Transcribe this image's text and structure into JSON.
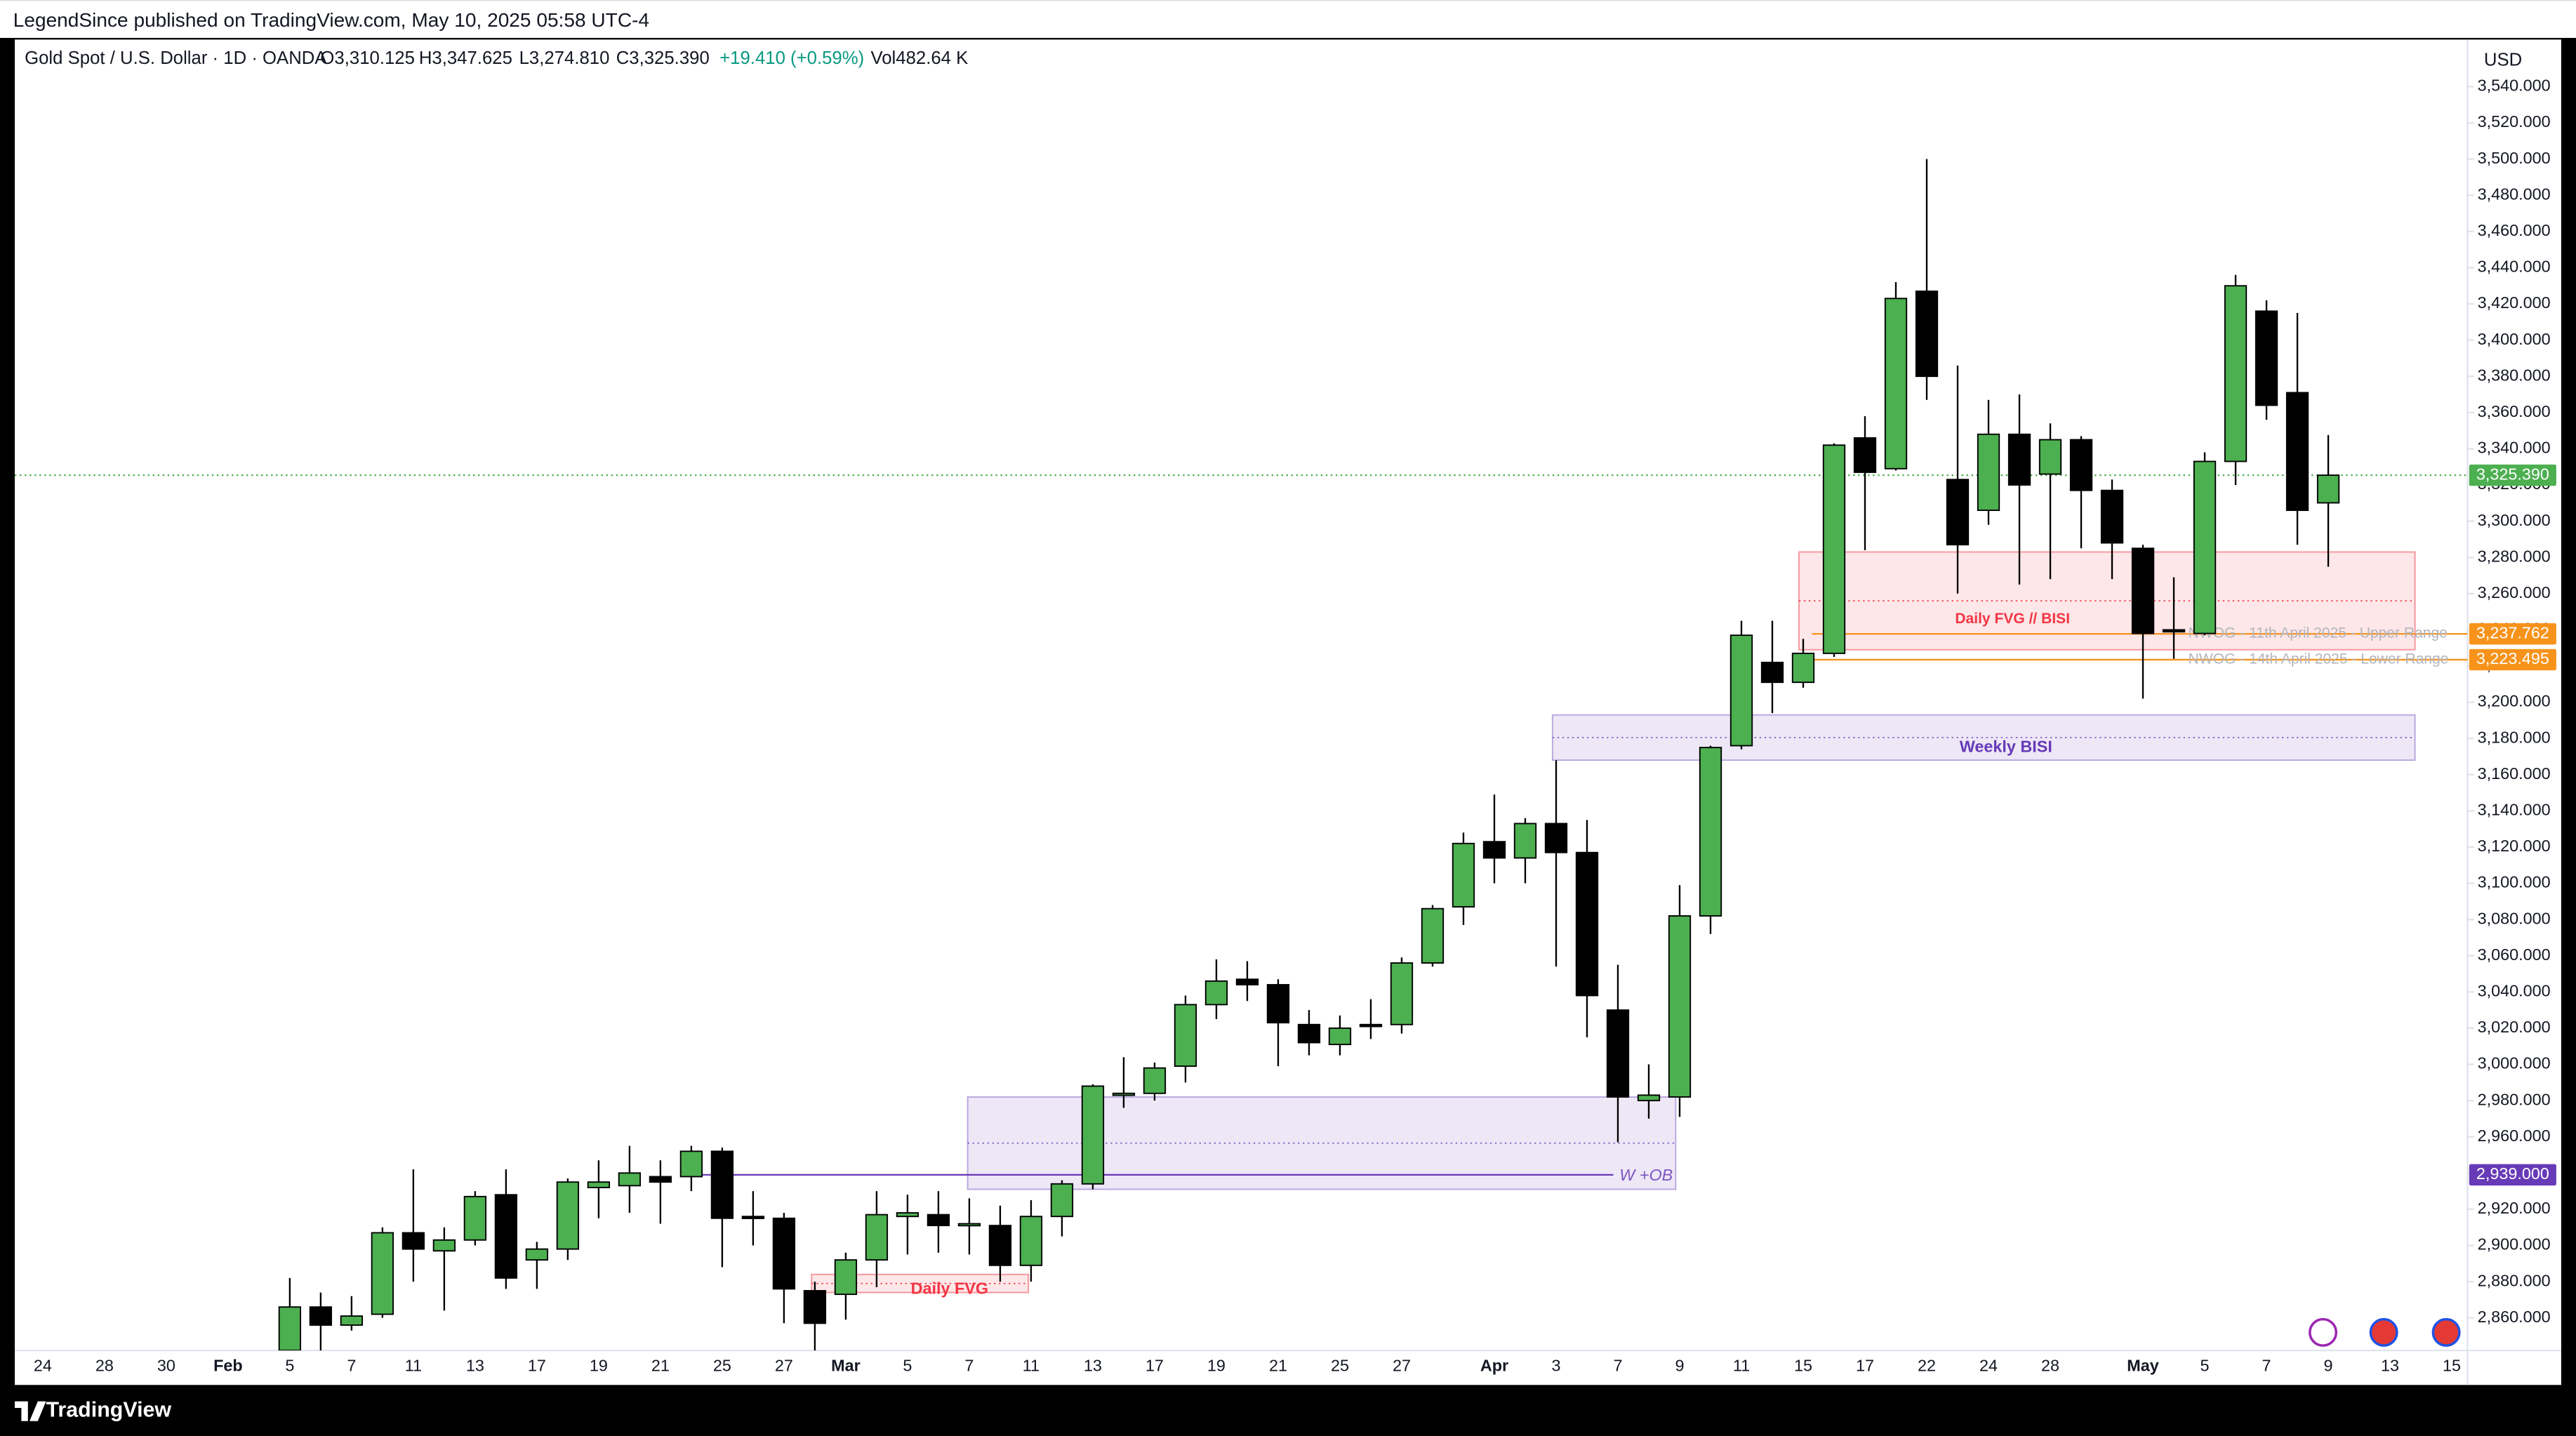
{
  "header": {
    "publisher": "LegendSince published on TradingView.com, May 10, 2025 05:58 UTC-4",
    "symbol": "Gold Spot / U.S. Dollar · 1D · OANDA",
    "legend_values": [
      "O3,310.125",
      "H3,347.625",
      "L3,274.810",
      "C3,325.390",
      "+19.410 (+0.59%)",
      "Vol482.64 K"
    ],
    "currency": "USD",
    "brand": "TradingView"
  },
  "chart_data": {
    "type": "candlestick",
    "categories": [
      "24",
      null,
      "28",
      null,
      "30",
      null,
      "Feb",
      null,
      "5",
      null,
      "7",
      null,
      "11",
      null,
      "13",
      null,
      "17",
      null,
      "19",
      null,
      "21",
      null,
      "25",
      null,
      "27",
      null,
      "Mar",
      null,
      "5",
      null,
      "7",
      null,
      "11",
      null,
      "13",
      null,
      "17",
      null,
      "19",
      null,
      "21",
      null,
      "25",
      null,
      "27",
      null,
      null,
      "Apr",
      null,
      "3",
      null,
      "7",
      null,
      "9",
      null,
      "11",
      null,
      "15",
      null,
      "17",
      null,
      "22",
      null,
      "24",
      null,
      "28",
      null,
      null,
      "May",
      null,
      "5",
      null,
      "7",
      null,
      "9",
      null,
      "13",
      null,
      "15"
    ],
    "open": [
      null,
      null,
      null,
      null,
      null,
      null,
      null,
      null,
      2842,
      2866,
      2856,
      2862,
      2907,
      2897,
      2903,
      2928,
      2892,
      2898,
      2932,
      2933,
      2938,
      2938,
      2952,
      2916,
      2915,
      2875,
      2873,
      2892,
      2916,
      2917,
      2911,
      2911,
      2889,
      2916,
      2934,
      2983,
      2984,
      2999,
      3033,
      3047,
      3044,
      3022,
      3011,
      3022,
      3022,
      3056,
      3087,
      3123,
      3114,
      3133,
      3117,
      3030,
      2980,
      2982,
      3082,
      3176,
      3222,
      3211,
      3227,
      3346,
      3329,
      3427,
      3323,
      3306,
      3348,
      3326,
      3345,
      3317,
      3285,
      3240,
      3238,
      3333,
      3416,
      3371,
      3310.125,
      null,
      null,
      null,
      null
    ],
    "high": [
      null,
      null,
      null,
      null,
      null,
      null,
      null,
      null,
      2882,
      2874,
      2872,
      2910,
      2942,
      2910,
      2930,
      2942,
      2902,
      2937,
      2947,
      2955,
      2947,
      2955,
      2954,
      2930,
      2918,
      2880,
      2896,
      2930,
      2928,
      2930,
      2926,
      2922,
      2925,
      2936,
      2989,
      3004,
      3001,
      3038,
      3058,
      3057,
      3047,
      3030,
      3027,
      3036,
      3059,
      3088,
      3128,
      3149,
      3136,
      3168,
      3135,
      3055,
      3000,
      3099,
      3176,
      3245,
      3245,
      3235,
      3343,
      3358,
      3432,
      3500,
      3386,
      3367,
      3370,
      3354,
      3347,
      3323,
      3287,
      3269,
      3338,
      3436,
      3422,
      3415,
      3347.625,
      null,
      null,
      null,
      null
    ],
    "low": [
      null,
      null,
      null,
      null,
      null,
      null,
      null,
      null,
      2834,
      2834,
      2853,
      2860,
      2880,
      2864,
      2900,
      2876,
      2876,
      2892,
      2915,
      2918,
      2912,
      2930,
      2888,
      2900,
      2857,
      2833,
      2859,
      2877,
      2895,
      2896,
      2895,
      2880,
      2880,
      2905,
      2931,
      2976,
      2980,
      2990,
      3025,
      3035,
      2999,
      3005,
      3005,
      3014,
      3017,
      3054,
      3077,
      3100,
      3100,
      3054,
      3015,
      2957,
      2970,
      2971,
      3072,
      3174,
      3194,
      3208,
      3225,
      3284,
      3328,
      3367,
      3260,
      3298,
      3265,
      3268,
      3285,
      3268,
      3202,
      3224,
      3237,
      3320,
      3356,
      3287,
      3274.81,
      null,
      null,
      null,
      null
    ],
    "close": [
      null,
      null,
      null,
      null,
      null,
      null,
      null,
      null,
      2866,
      2856,
      2861,
      2907,
      2898,
      2903,
      2927,
      2882,
      2898,
      2935,
      2935,
      2940,
      2935,
      2952,
      2915,
      2915,
      2876,
      2857,
      2892,
      2917,
      2918,
      2911,
      2912,
      2889,
      2916,
      2934,
      2988,
      2984,
      2998,
      3033,
      3046,
      3044,
      3023,
      3012,
      3020,
      3021,
      3056,
      3086,
      3122,
      3114,
      3133,
      3117,
      3038,
      2982,
      2983,
      3082,
      3175,
      3237,
      3211,
      3227,
      3342,
      3327,
      3423,
      3380,
      3287,
      3348,
      3320,
      3345,
      3317,
      3288,
      3238,
      3239,
      3333,
      3430,
      3364,
      3306,
      3325.39,
      null,
      null,
      null,
      null
    ],
    "up_color": "#4caf50",
    "down_color": "#000000",
    "ylim": [
      2842,
      3566
    ],
    "yticks": [
      {
        "value": 2860,
        "label": "2,860.000"
      },
      {
        "value": 2880,
        "label": "2,880.000"
      },
      {
        "value": 2900,
        "label": "2,900.000"
      },
      {
        "value": 2920,
        "label": "2,920.000"
      },
      {
        "value": 2940,
        "label": "2,940.000"
      },
      {
        "value": 2960,
        "label": "2,960.000"
      },
      {
        "value": 2980,
        "label": "2,980.000"
      },
      {
        "value": 3000,
        "label": "3,000.000"
      },
      {
        "value": 3020,
        "label": "3,020.000"
      },
      {
        "value": 3040,
        "label": "3,040.000"
      },
      {
        "value": 3060,
        "label": "3,060.000"
      },
      {
        "value": 3080,
        "label": "3,080.000"
      },
      {
        "value": 3100,
        "label": "3,100.000"
      },
      {
        "value": 3120,
        "label": "3,120.000"
      },
      {
        "value": 3140,
        "label": "3,140.000"
      },
      {
        "value": 3160,
        "label": "3,160.000"
      },
      {
        "value": 3180,
        "label": "3,180.000"
      },
      {
        "value": 3200,
        "label": "3,200.000"
      },
      {
        "value": 3220,
        "label": "3,220.000"
      },
      {
        "value": 3240,
        "label": "3,240.000"
      },
      {
        "value": 3260,
        "label": "3,260.000"
      },
      {
        "value": 3280,
        "label": "3,280.000"
      },
      {
        "value": 3300,
        "label": "3,300.000"
      },
      {
        "value": 3320,
        "label": "3,320.000"
      },
      {
        "value": 3340,
        "label": "3,340.000"
      },
      {
        "value": 3360,
        "label": "3,360.000"
      },
      {
        "value": 3380,
        "label": "3,380.000"
      },
      {
        "value": 3400,
        "label": "3,400.000"
      },
      {
        "value": 3420,
        "label": "3,420.000"
      },
      {
        "value": 3440,
        "label": "3,440.000"
      },
      {
        "value": 3460,
        "label": "3,460.000"
      },
      {
        "value": 3480,
        "label": "3,480.000"
      },
      {
        "value": 3500,
        "label": "3,500.000"
      },
      {
        "value": 3520,
        "label": "3,520.000"
      },
      {
        "value": 3540,
        "label": "3,540.000"
      }
    ],
    "zones": [
      {
        "label": "Daily FVG // BISI",
        "top": 3283,
        "bottom": 3229,
        "color": "#f23645"
      },
      {
        "label": "Weekly BISI",
        "top": 3193,
        "bottom": 3168,
        "color": "#7e57c2"
      },
      {
        "label": "W +OB",
        "top": 2982,
        "bottom": 2931,
        "color": "#7e57c2"
      },
      {
        "label": "Daily FVG",
        "top": 2884,
        "bottom": 2874,
        "color": "#f23645"
      }
    ],
    "price_lines": [
      {
        "value": 3325.39,
        "label": "3,325.390",
        "color": "#4caf50"
      },
      {
        "value": 3237.762,
        "label": "3,237.762",
        "color": "#f7931a",
        "name": "NWOG - 11th April 2025 - Upper Range"
      },
      {
        "value": 3223.495,
        "label": "3,223.495",
        "color": "#f7931a",
        "name": "NWOG - 14th April 2025 - Lower Range"
      },
      {
        "value": 2939,
        "label": "2,939.000",
        "color": "#673ab7"
      }
    ]
  }
}
